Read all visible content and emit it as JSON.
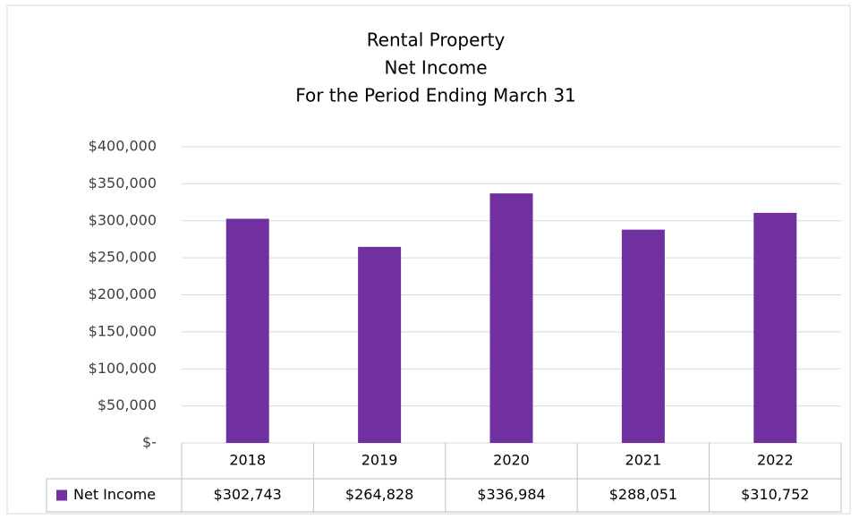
{
  "chart_data": {
    "type": "bar",
    "title": [
      "Rental Property",
      "Net Income",
      "For the Period Ending March 31"
    ],
    "categories": [
      "2018",
      "2019",
      "2020",
      "2021",
      "2022"
    ],
    "series": [
      {
        "name": "Net Income",
        "color": "#7030a0",
        "values": [
          302743,
          264828,
          336984,
          288051,
          310752
        ],
        "value_labels": [
          "$302,743",
          "$264,828",
          "$336,984",
          "$288,051",
          "$310,752"
        ]
      }
    ],
    "ylim": [
      0,
      400000
    ],
    "yticks": [
      {
        "value": 0,
        "label": "$-"
      },
      {
        "value": 50000,
        "label": "$50,000"
      },
      {
        "value": 100000,
        "label": "$100,000"
      },
      {
        "value": 150000,
        "label": "$150,000"
      },
      {
        "value": 200000,
        "label": "$200,000"
      },
      {
        "value": 250000,
        "label": "$250,000"
      },
      {
        "value": 300000,
        "label": "$300,000"
      },
      {
        "value": 350000,
        "label": "$350,000"
      },
      {
        "value": 400000,
        "label": "$400,000"
      }
    ],
    "grid": true
  }
}
